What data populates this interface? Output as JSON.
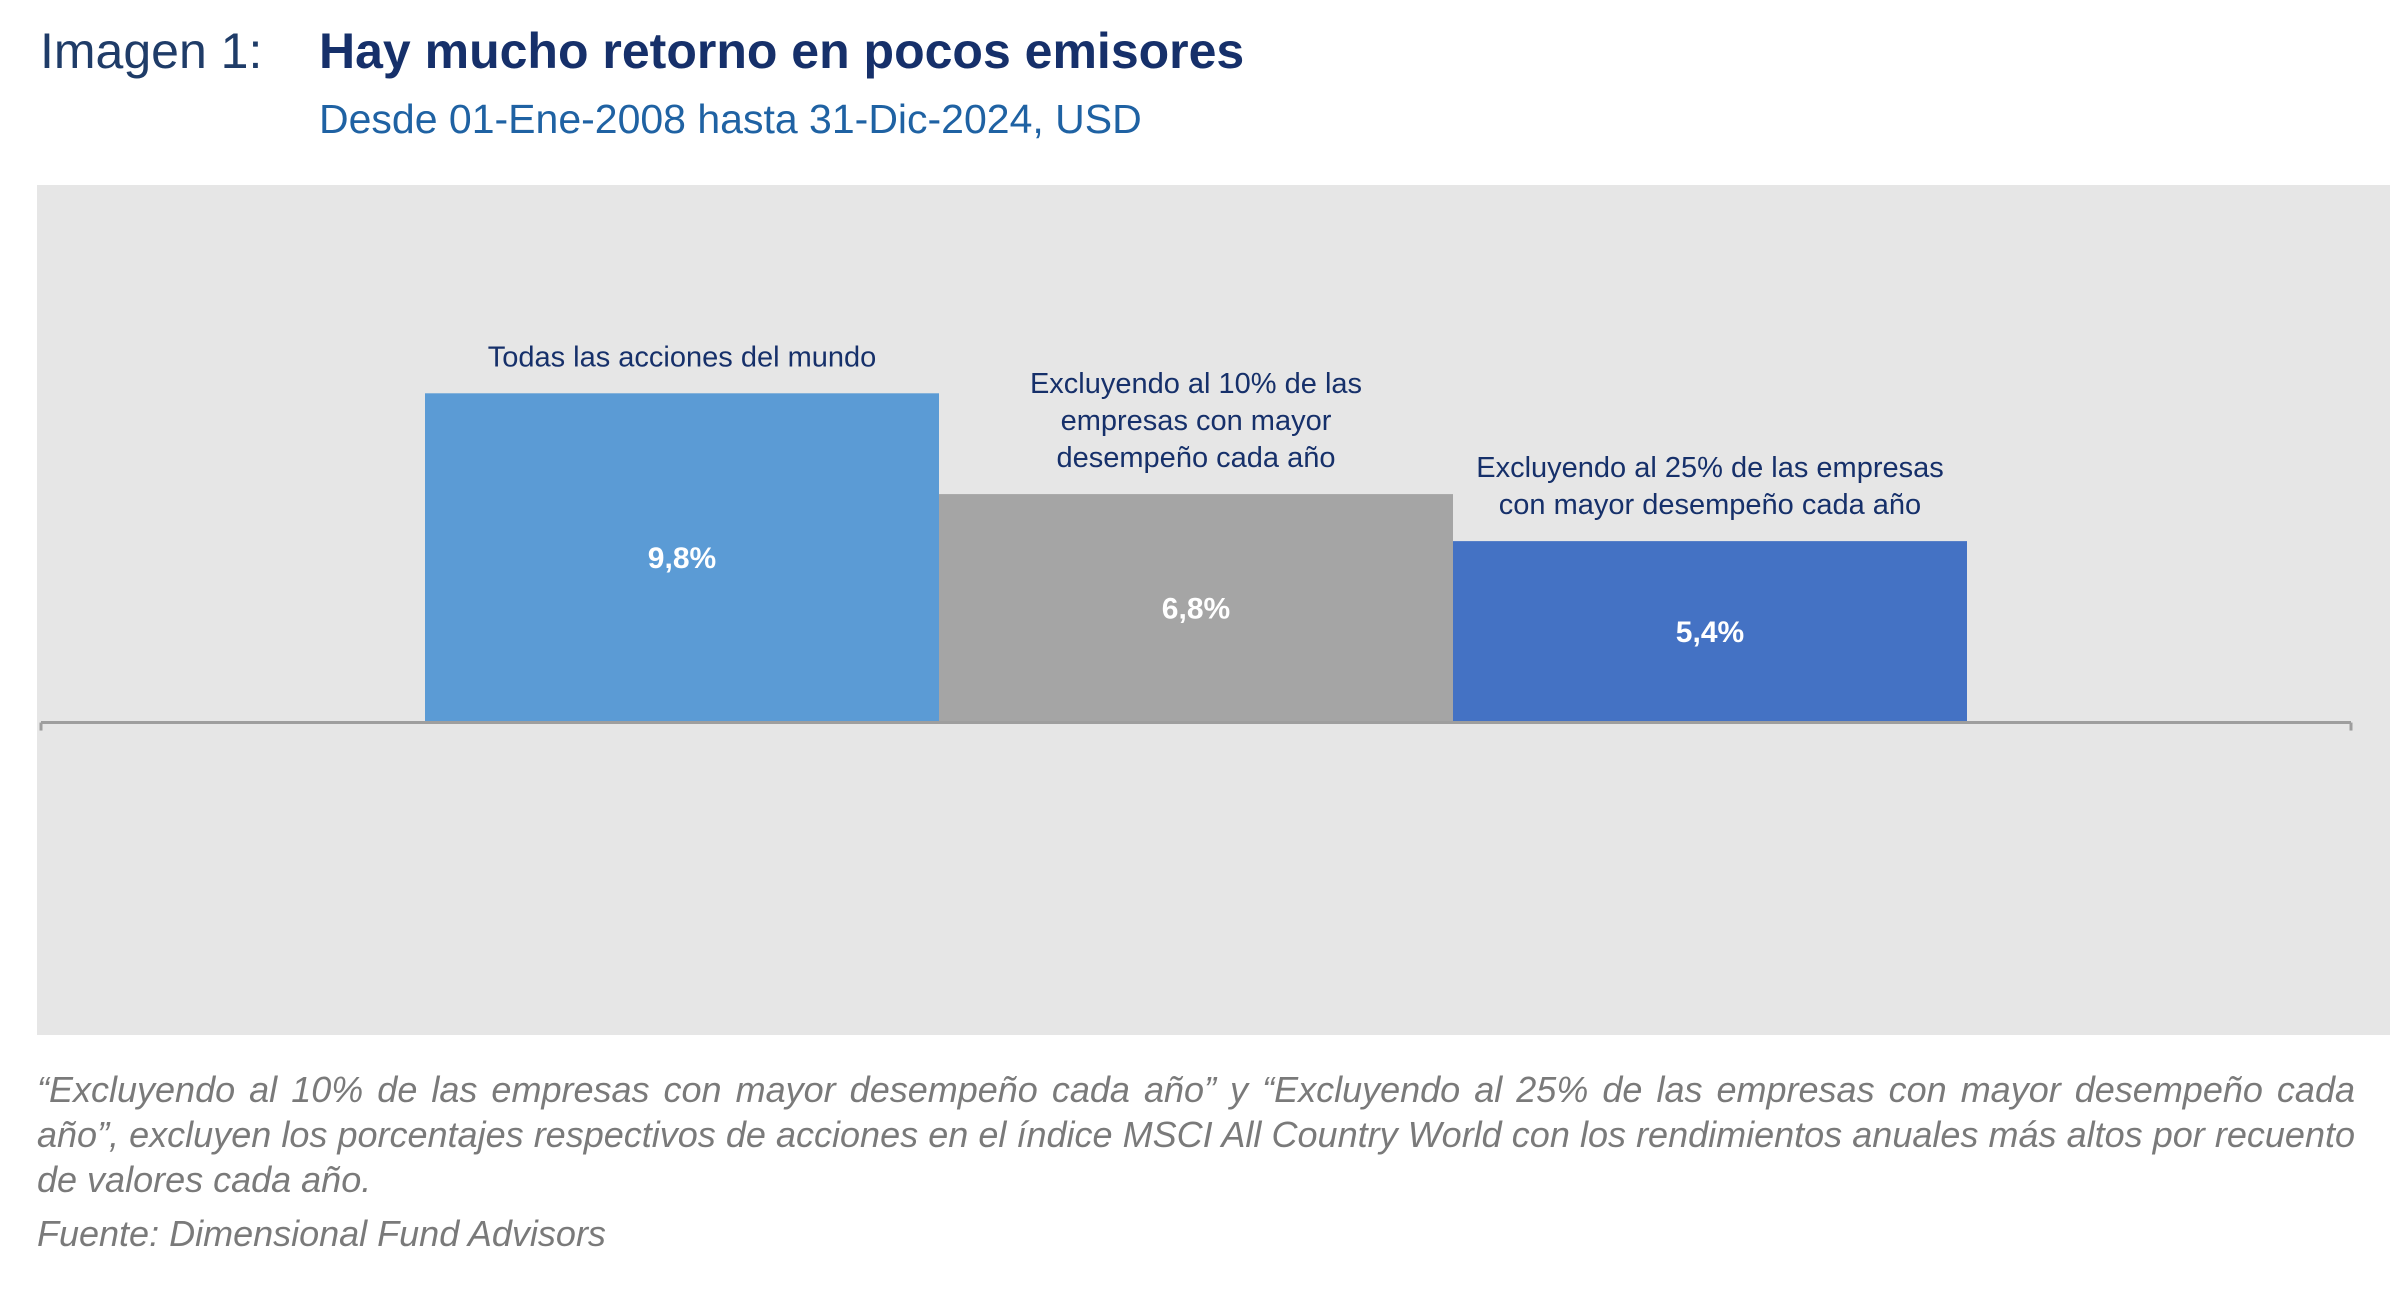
{
  "figure": {
    "label": "Imagen 1:",
    "title": "Hay mucho retorno en pocos emisores",
    "subtitle": "Desde 01-Ene-2008 hasta 31-Dic-2024, USD"
  },
  "chart_data": {
    "type": "bar",
    "categories": [
      "Todas las acciones del mundo",
      "Excluyendo al 10% de las empresas con mayor desempeño cada año",
      "Excluyendo al 25% de las empresas con mayor desempeño cada año"
    ],
    "category_label_lines": [
      [
        "Todas las acciones del mundo"
      ],
      [
        "Excluyendo al 10% de las",
        "empresas con mayor",
        "desempeño cada año"
      ],
      [
        "Excluyendo al 25% de las empresas",
        "con mayor desempeño cada año"
      ]
    ],
    "values": [
      9.8,
      6.8,
      5.4
    ],
    "value_labels": [
      "9,8%",
      "6,8%",
      "5,4%"
    ],
    "unit": "%",
    "colors": [
      "#5b9bd5",
      "#a5a5a5",
      "#4472c4"
    ],
    "ylim": [
      -9.3,
      16
    ],
    "grid": false,
    "legend": "none"
  },
  "notes": {
    "footnote": "“Excluyendo al 10% de las empresas con mayor desempeño cada año” y “Excluyendo al 25% de las empresas con mayor desempeño cada año”, excluyen los porcentajes respectivos de acciones en el índice MSCI All Country World con los rendimientos anuales más altos por recuento de valores cada año.",
    "source": "Fuente: Dimensional Fund Advisors"
  }
}
